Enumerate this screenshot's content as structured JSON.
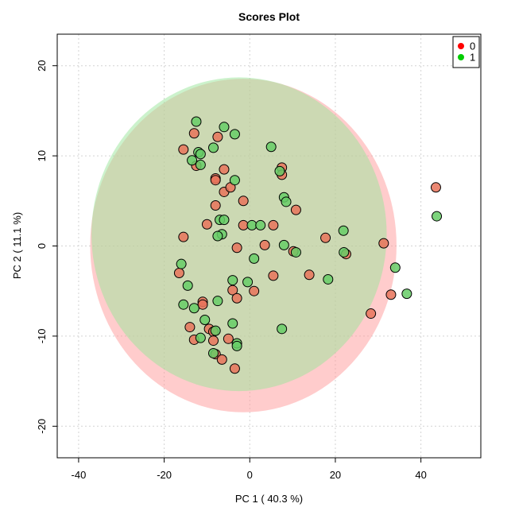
{
  "chart_data": {
    "type": "scatter",
    "title": "Scores Plot",
    "xlabel": "PC 1 ( 40.3 %)",
    "ylabel": "PC 2 ( 11.1 %)",
    "xlim": [
      -45,
      54
    ],
    "ylim": [
      -23.5,
      23.5
    ],
    "xticks": [
      -40,
      -20,
      0,
      20,
      40
    ],
    "yticks": [
      -20,
      -10,
      0,
      10,
      20
    ],
    "grid": true,
    "legend_position": "top-right",
    "series": [
      {
        "name": "0",
        "color": "#FF0000",
        "fill": "#E8735B",
        "ellipse": {
          "cx": -1.5,
          "cy": 0.05,
          "rx": 35.8,
          "ry": 18.5,
          "color": "#FF9999"
        },
        "points": [
          [
            -13,
            12.5
          ],
          [
            -15.5,
            10.7
          ],
          [
            -7.5,
            12.1
          ],
          [
            -12.5,
            8.9
          ],
          [
            -6,
            8.5
          ],
          [
            -8,
            7.5
          ],
          [
            -8,
            7.3
          ],
          [
            -6,
            6
          ],
          [
            -4.5,
            6.5
          ],
          [
            -1.5,
            5
          ],
          [
            -8,
            4.5
          ],
          [
            -10,
            2.4
          ],
          [
            -1.5,
            2.3
          ],
          [
            -15.5,
            1
          ],
          [
            7.5,
            8.7
          ],
          [
            7.5,
            7.9
          ],
          [
            10.8,
            4
          ],
          [
            5.5,
            2.3
          ],
          [
            17.7,
            0.9
          ],
          [
            31.3,
            0.3
          ],
          [
            -3,
            -0.2
          ],
          [
            3.5,
            0.1
          ],
          [
            10.2,
            -0.6
          ],
          [
            22.5,
            -0.9
          ],
          [
            -16.5,
            -3
          ],
          [
            5.5,
            -3.3
          ],
          [
            13.9,
            -3.2
          ],
          [
            -4,
            -4.9
          ],
          [
            1,
            -5
          ],
          [
            -3,
            -5.8
          ],
          [
            -11,
            -6.2
          ],
          [
            -11,
            -6.5
          ],
          [
            33,
            -5.4
          ],
          [
            28.3,
            -7.5
          ],
          [
            -14,
            -9
          ],
          [
            -9.5,
            -9.2
          ],
          [
            -8.5,
            -9.5
          ],
          [
            -13,
            -10.4
          ],
          [
            -8.5,
            -10.5
          ],
          [
            -5,
            -10.3
          ],
          [
            -8,
            -12
          ],
          [
            -6.5,
            -12.6
          ],
          [
            -3.5,
            -13.6
          ],
          [
            43.5,
            6.5
          ]
        ]
      },
      {
        "name": "1",
        "color": "#00CC00",
        "fill": "#66CC66",
        "ellipse": {
          "cx": -2.5,
          "cy": 1.3,
          "rx": 34.5,
          "ry": 17.4,
          "color": "#99E699"
        },
        "points": [
          [
            -12.5,
            13.8
          ],
          [
            -6,
            13.2
          ],
          [
            -3.5,
            12.4
          ],
          [
            5,
            11
          ],
          [
            -8.5,
            10.9
          ],
          [
            -12,
            10.4
          ],
          [
            -11.5,
            10.2
          ],
          [
            -13.5,
            9.5
          ],
          [
            -11.5,
            9
          ],
          [
            -3.5,
            7.3
          ],
          [
            7,
            8.3
          ],
          [
            8,
            5.4
          ],
          [
            8.5,
            4.9
          ],
          [
            -7,
            2.9
          ],
          [
            -6,
            2.9
          ],
          [
            -6.5,
            1.3
          ],
          [
            -7.5,
            1.1
          ],
          [
            0.5,
            2.3
          ],
          [
            2.5,
            2.3
          ],
          [
            21.9,
            1.7
          ],
          [
            -16,
            -2
          ],
          [
            1,
            -1.4
          ],
          [
            8,
            0.1
          ],
          [
            10.8,
            -0.7
          ],
          [
            22,
            -0.7
          ],
          [
            34,
            -2.4
          ],
          [
            18.3,
            -3.7
          ],
          [
            -14.5,
            -4.4
          ],
          [
            -4,
            -3.8
          ],
          [
            -0.5,
            -4
          ],
          [
            36.7,
            -5.3
          ],
          [
            -15.5,
            -6.5
          ],
          [
            -13,
            -6.9
          ],
          [
            -7.5,
            -6.1
          ],
          [
            -10.5,
            -8.2
          ],
          [
            -4,
            -8.6
          ],
          [
            -8,
            -9.4
          ],
          [
            7.5,
            -9.2
          ],
          [
            -11.5,
            -10.2
          ],
          [
            -3,
            -10.8
          ],
          [
            -3,
            -11.1
          ],
          [
            -8.5,
            -11.9
          ],
          [
            43.7,
            3.3
          ]
        ]
      }
    ]
  }
}
